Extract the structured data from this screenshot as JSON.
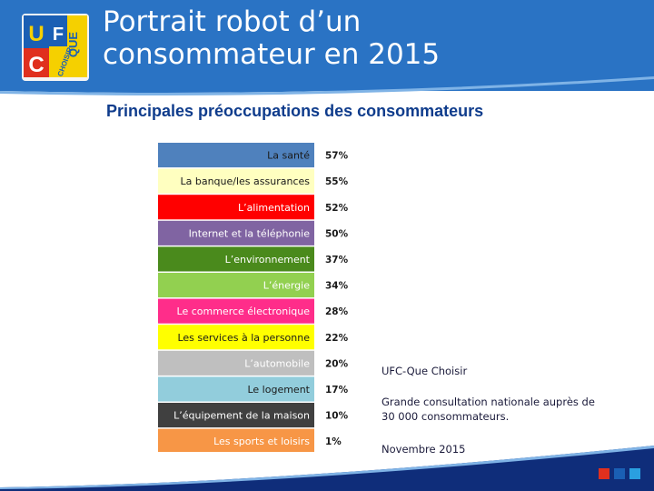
{
  "header": {
    "title_line1": "Portrait robot d’un",
    "title_line2": "consommateur en 2015"
  },
  "logo": {
    "letters": [
      "U",
      "F",
      "C",
      "QUE",
      "CHOISIR"
    ],
    "colors": {
      "blue": "#1a5fb4",
      "red": "#e0301e",
      "yellow": "#f5d000",
      "white": "#ffffff"
    }
  },
  "subtitle": "Principales préoccupations des consommateurs",
  "chart_data": {
    "type": "bar",
    "categories": [
      "La santé",
      "La banque/les assurances",
      "L’alimentation",
      "Internet et la téléphonie",
      "L’environnement",
      "L’énergie",
      "Le commerce électronique",
      "Les services à la personne",
      "L’automobile",
      "Le logement",
      "L’équipement de la maison",
      "Les sports et loisirs"
    ],
    "values": [
      57,
      55,
      52,
      50,
      37,
      34,
      28,
      22,
      20,
      17,
      10,
      1
    ],
    "value_labels": [
      "57%",
      "55%",
      "52%",
      "50%",
      "37%",
      "34%",
      "28%",
      "22%",
      "20%",
      "17%",
      "10%",
      "1%"
    ],
    "colors": [
      "#4f81bd",
      "#ffffc0",
      "#ff0000",
      "#8064a2",
      "#4a8a1c",
      "#92d050",
      "#ff2d8a",
      "#ffff00",
      "#bfbfbf",
      "#92cddc",
      "#404040",
      "#f79646"
    ],
    "label_colors": [
      "#1a1a1a",
      "#1a1a1a",
      "#ffffff",
      "#ffffff",
      "#ffffff",
      "#ffffff",
      "#ffffff",
      "#1a1a1a",
      "#ffffff",
      "#1a1a1a",
      "#ffffff",
      "#ffffff"
    ]
  },
  "source": {
    "org": "UFC-Que Choisir",
    "desc": "Grande consultation nationale auprès de 30 000 consommateurs.",
    "date": "Novembre 2015"
  },
  "footer": {
    "colors": [
      "#e0301e",
      "#1a5fb4",
      "#2a9fe0"
    ]
  }
}
